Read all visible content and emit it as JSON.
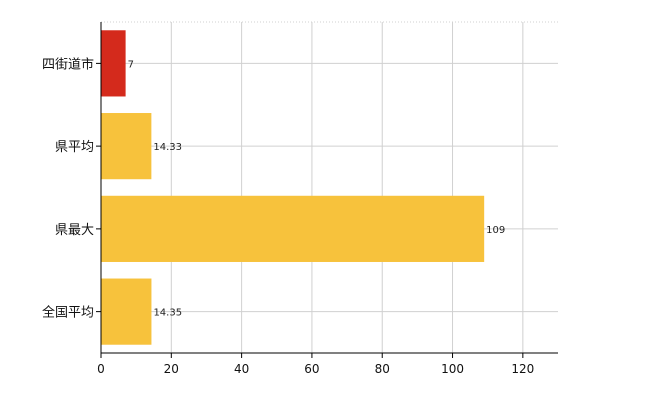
{
  "chart_data": {
    "type": "bar",
    "orientation": "horizontal",
    "categories": [
      "四街道市",
      "県平均",
      "県最大",
      "全国平均"
    ],
    "values": [
      7,
      14.33,
      109,
      14.35
    ],
    "value_labels": [
      "7",
      "14.33",
      "109",
      "14.35"
    ],
    "colors": [
      "#d42a1c",
      "#f7c23c",
      "#f7c23c",
      "#f7c23c"
    ],
    "xlim": [
      0,
      130
    ],
    "xticks": [
      0,
      20,
      40,
      60,
      80,
      100,
      120
    ],
    "grid": true,
    "title": "",
    "xlabel": "",
    "ylabel": ""
  }
}
